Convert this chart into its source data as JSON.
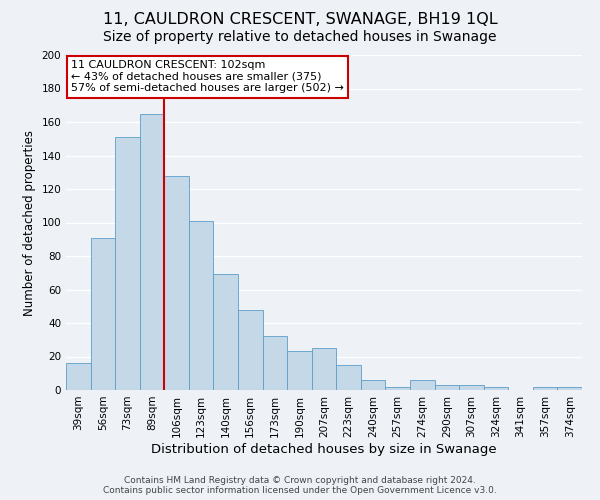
{
  "title": "11, CAULDRON CRESCENT, SWANAGE, BH19 1QL",
  "subtitle": "Size of property relative to detached houses in Swanage",
  "xlabel": "Distribution of detached houses by size in Swanage",
  "ylabel": "Number of detached properties",
  "bar_labels": [
    "39sqm",
    "56sqm",
    "73sqm",
    "89sqm",
    "106sqm",
    "123sqm",
    "140sqm",
    "156sqm",
    "173sqm",
    "190sqm",
    "207sqm",
    "223sqm",
    "240sqm",
    "257sqm",
    "274sqm",
    "290sqm",
    "307sqm",
    "324sqm",
    "341sqm",
    "357sqm",
    "374sqm"
  ],
  "bar_values": [
    16,
    91,
    151,
    165,
    128,
    101,
    69,
    48,
    32,
    23,
    25,
    15,
    6,
    2,
    6,
    3,
    3,
    2,
    0,
    2,
    2
  ],
  "bar_color": "#c5d8e8",
  "bar_edgecolor": "#5b9ec9",
  "ylim": [
    0,
    200
  ],
  "yticks": [
    0,
    20,
    40,
    60,
    80,
    100,
    120,
    140,
    160,
    180,
    200
  ],
  "vline_x": 4.0,
  "vline_color": "#cc0000",
  "annotation_title": "11 CAULDRON CRESCENT: 102sqm",
  "annotation_line1": "← 43% of detached houses are smaller (375)",
  "annotation_line2": "57% of semi-detached houses are larger (502) →",
  "annotation_box_edgecolor": "#cc0000",
  "footer1": "Contains HM Land Registry data © Crown copyright and database right 2024.",
  "footer2": "Contains public sector information licensed under the Open Government Licence v3.0.",
  "background_color": "#eef2f7",
  "plot_background": "#eef2f7",
  "grid_color": "#ffffff",
  "title_fontsize": 11.5,
  "subtitle_fontsize": 10,
  "xlabel_fontsize": 9.5,
  "ylabel_fontsize": 8.5,
  "tick_fontsize": 7.5,
  "footer_fontsize": 6.5,
  "annotation_fontsize": 8
}
